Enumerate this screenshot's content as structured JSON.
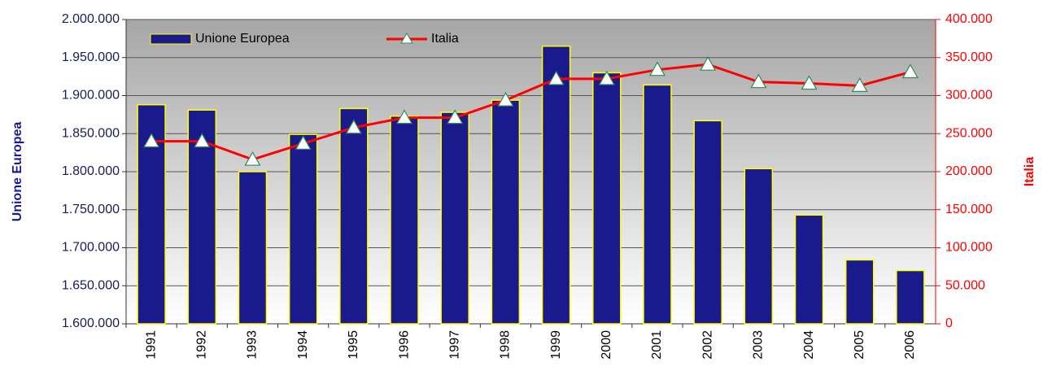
{
  "chart_data": {
    "type": "bar",
    "categories": [
      "1991",
      "1992",
      "1993",
      "1994",
      "1995",
      "1996",
      "1997",
      "1998",
      "1999",
      "2000",
      "2001",
      "2002",
      "2003",
      "2004",
      "2005",
      "2006"
    ],
    "series": [
      {
        "name": "Unione Europea",
        "color": "#1a1a8c",
        "values": [
          1888000,
          1881000,
          1800000,
          1849000,
          1883000,
          1873000,
          1878000,
          1894000,
          1965000,
          1930000,
          1914000,
          1867000,
          1804000,
          1743000,
          1684000,
          1670000
        ]
      },
      {
        "name": "Italia",
        "color": "#ff0000",
        "type": "line",
        "axis": "y2",
        "values": [
          240000,
          240000,
          216000,
          237000,
          258000,
          271000,
          271000,
          294000,
          322000,
          322000,
          334000,
          341000,
          318000,
          316000,
          313000,
          331000
        ]
      }
    ],
    "ylabel": "Unione Europea",
    "y2label": "Italia",
    "ylim": [
      1600000,
      2000000
    ],
    "yticks": [
      {
        "value": 1600000,
        "label": "1.600.000"
      },
      {
        "value": 1650000,
        "label": "1.650.000"
      },
      {
        "value": 1700000,
        "label": "1.700.000"
      },
      {
        "value": 1750000,
        "label": "1.750.000"
      },
      {
        "value": 1800000,
        "label": "1.800.000"
      },
      {
        "value": 1850000,
        "label": "1.850.000"
      },
      {
        "value": 1900000,
        "label": "1.900.000"
      },
      {
        "value": 1950000,
        "label": "1.950.000"
      },
      {
        "value": 2000000,
        "label": "2.000.000"
      }
    ],
    "y2lim": [
      0,
      400000
    ],
    "y2ticks": [
      0,
      {
        "value": 50000,
        "label": "50.000"
      },
      {
        "value": 100000,
        "label": "100.000"
      },
      {
        "value": 150000,
        "label": "150.000"
      },
      {
        "value": 200000,
        "label": "200.000"
      },
      {
        "value": 250000,
        "label": "250.000"
      },
      {
        "value": 300000,
        "label": "300.000"
      },
      {
        "value": 350000,
        "label": "350.000"
      },
      {
        "value": 400000,
        "label": "400.000"
      }
    ],
    "grid": true,
    "legend": "top-left"
  }
}
